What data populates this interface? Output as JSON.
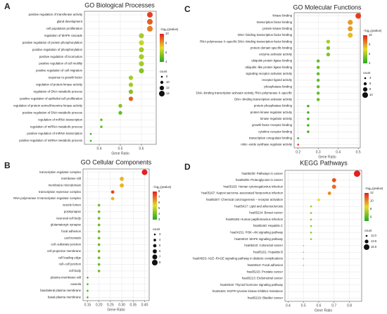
{
  "chart_data": [
    {
      "type": "dotplot",
      "panel": "A",
      "title": "GO Biological Processes",
      "x_label": "Gene Ratio",
      "categories": [
        "positive regulation of transferase activity",
        "gland development",
        "cell population proliferation",
        "regulation of MAPK cascade",
        "positive regulation of protein phosphorylation",
        "positive regulation of phosphorylation",
        "positive regulation of locomotion",
        "positive regulation of cell motility",
        "positive regulation of cell migration",
        "response to growth factor",
        "regulation of protein kinase activity",
        "regulation of DNA metabolic process",
        "positive regulation of epithelial cell proliferation",
        "regulation of protein serine/threonine kinase activity",
        "positive regulation of DNA metabolic process",
        "regulation of miRNA transcription",
        "regulation of miRNA metabolic process",
        "positive regulation of miRNA transcription",
        "positive regulation of miRNA metabolic process"
      ],
      "values": [
        0.64,
        0.64,
        0.64,
        0.6,
        0.6,
        0.6,
        0.6,
        0.6,
        0.6,
        0.55,
        0.55,
        0.55,
        0.55,
        0.5,
        0.5,
        0.41,
        0.41,
        0.36,
        0.36
      ],
      "neglog10p": [
        9.5,
        9,
        8.5,
        6,
        6.5,
        6,
        6,
        6,
        5.5,
        6,
        6,
        5.5,
        9,
        5.5,
        5,
        5,
        5,
        4.5,
        4.2
      ],
      "count": [
        14,
        14,
        14,
        13,
        13,
        13,
        13,
        13,
        13,
        12,
        12,
        12,
        12,
        11,
        11,
        9,
        9,
        8,
        8
      ],
      "xlim": [
        0.33,
        0.67
      ],
      "xticks": [
        0.4,
        0.5,
        0.6
      ],
      "grid": true,
      "color_legend_title": "−log₁₀(pvalue)",
      "clim": [
        4,
        10
      ],
      "cticks": [
        4,
        6,
        8,
        10
      ],
      "size_legend_title": "count",
      "size_legend": [
        8,
        10,
        12,
        14
      ]
    },
    {
      "type": "dotplot",
      "panel": "B",
      "title": "GO Cellular Components",
      "x_label": "Gene Ratio",
      "categories": [
        "transcription regulator complex",
        "membrane raft",
        "membrane microdomain",
        "transcription repressor complex",
        "RNA polymerase II transcription regulator complex",
        "vesicle lumen",
        "postsynapse",
        "neuronal cell body",
        "glutamatergic synapse",
        "focal adhesion",
        "euchromatin",
        "cell−substrate junction",
        "cell projection membrane",
        "cell leading edge",
        "cell−cell junction",
        "cell body",
        "plasma membrane raft",
        "caveola",
        "basolateral plasma membrane",
        "basal plasma membrane"
      ],
      "values": [
        0.4,
        0.3,
        0.3,
        0.26,
        0.26,
        0.2,
        0.2,
        0.2,
        0.2,
        0.2,
        0.2,
        0.2,
        0.2,
        0.2,
        0.2,
        0.2,
        0.15,
        0.15,
        0.15,
        0.15
      ],
      "neglog10p": [
        8,
        6,
        6,
        7.5,
        6,
        4,
        4,
        4,
        4,
        4,
        4,
        4,
        4,
        4,
        4,
        4,
        3.5,
        3.5,
        3.5,
        3.5
      ],
      "count": [
        8,
        6,
        6,
        5,
        5,
        4,
        4,
        4,
        4,
        4,
        4,
        4,
        4,
        4,
        4,
        4,
        3,
        3,
        3,
        3
      ],
      "xlim": [
        0.13,
        0.42
      ],
      "xticks": [
        0.15,
        {
          "value": 0.2,
          "label": "0.20"
        },
        0.25,
        {
          "value": 0.3,
          "label": "0.30"
        },
        0.35,
        {
          "value": 0.4,
          "label": "0.40"
        }
      ],
      "grid": true,
      "color_legend_title": "−log₁₀(pvalue)",
      "clim": [
        3,
        8
      ],
      "cticks": [
        3,
        4,
        5,
        6,
        7,
        8
      ],
      "size_legend_title": "count",
      "size_legend": [
        3,
        4,
        5,
        6,
        7,
        8
      ]
    },
    {
      "type": "dotplot",
      "panel": "C",
      "title": "GO Molecular Functions",
      "x_label": "Gene Ratio",
      "categories": [
        "kinase binding",
        "transcription factor binding",
        "protein kinase binding",
        "DNA−binding transcription factor binding",
        "RNA polymerase II−specific DNA−binding transcription factor binding",
        "protein domain specific binding",
        "enzyme activator activity",
        "ubiquitin protein ligase binding",
        "ubiquitin−like protein ligase binding",
        "signaling receptor activator activity",
        "receptor ligand activity",
        "phosphatase binding",
        "DNA−binding transcription activator activity, RNA polymerase II−specific",
        "DNA−binding transcription activator activity",
        "protein phosphatase binding",
        "protein kinase regulator activity",
        "kinase regulator activity",
        "growth factor receptor binding",
        "cytokine receptor binding",
        "transcription coregulator binding",
        "nitric−oxide synthase regulator activity"
      ],
      "values": [
        0.5,
        0.46,
        0.46,
        0.46,
        0.35,
        0.35,
        0.35,
        0.3,
        0.3,
        0.3,
        0.3,
        0.3,
        0.3,
        0.3,
        0.25,
        0.25,
        0.25,
        0.25,
        0.25,
        0.2,
        0.2
      ],
      "neglog10p": [
        9.5,
        8,
        8,
        7.5,
        6,
        5.5,
        5.5,
        5,
        5,
        5,
        5,
        5,
        5,
        5,
        4.5,
        4.5,
        4.5,
        4.5,
        4.5,
        4.2,
        9.5
      ],
      "count": [
        10,
        9,
        9,
        9,
        7,
        7,
        7,
        6,
        6,
        6,
        6,
        6,
        6,
        6,
        5,
        5,
        5,
        5,
        5,
        4,
        4
      ],
      "xlim": [
        0.18,
        0.51
      ],
      "xticks": [
        0.2,
        0.3,
        0.4,
        0.5
      ],
      "grid": true,
      "color_legend_title": "−log₁₀(pvalue)",
      "clim": [
        4,
        10
      ],
      "cticks": [
        4,
        6,
        8,
        10
      ],
      "size_legend_title": "count",
      "size_legend": [
        4,
        6,
        8,
        10
      ]
    },
    {
      "type": "dotplot",
      "panel": "D",
      "title": "KEGG Pathways",
      "x_label": "Gene Ratio",
      "categories": [
        "hsa05200: Pathways in cancer",
        "hsa05205: Proteoglycans in cancer",
        "hsa05163: Human cytomegalovirus infection",
        "hsa05167: Kaposi sarcoma−associated herpesvirus infection",
        "hsa05207: Chemical carcinogenesis − receptor activation",
        "hsa05417: Lipid and atherosclerosis",
        "hsa05224: Breast cancer",
        "hsa05165: Human papillomavirus infection",
        "hsa05160: Hepatitis C",
        "hsa04151: PI3K−Akt signaling pathway",
        "hsa04010: MAPK signaling pathway",
        "hsa05210: Colorectal cancer",
        "hsa05161: Hepatitis B",
        "hsa04933: AGE−RAGE signaling pathway in diabetic complications",
        "hsa04510: Focal adhesion",
        "hsa05215: Prostate cancer",
        "hsa05213: Endometrial cancer",
        "hsa04919: Thyroid hormone signaling pathway",
        "hsa01521: EGFR tyrosine kinase inhibitor resistance",
        "hsa05219: Bladder cancer"
      ],
      "values": [
        0.85,
        0.7,
        0.7,
        0.67,
        0.6,
        0.55,
        0.55,
        0.55,
        0.55,
        0.55,
        0.55,
        0.5,
        0.5,
        0.5,
        0.5,
        0.45,
        0.45,
        0.45,
        0.45,
        0.45
      ],
      "neglog10p": [
        12,
        11,
        10.5,
        10,
        8.5,
        7,
        7,
        7,
        7,
        7,
        7,
        6.5,
        6.5,
        6.5,
        6.5,
        6,
        6,
        6,
        6,
        6
      ],
      "count": [
        17,
        14,
        14,
        13,
        12,
        11,
        11,
        11,
        11,
        11,
        11,
        10,
        10,
        10,
        10,
        9,
        9,
        9,
        9,
        9
      ],
      "xlim": [
        0.38,
        0.88
      ],
      "xticks": [
        0.4,
        0.5,
        0.6,
        0.7,
        0.8
      ],
      "grid": true,
      "color_legend_title": "−log₁₀(pvalue)",
      "clim": [
        5,
        12
      ],
      "cticks": [
        6,
        8,
        10,
        12
      ],
      "size_legend_title": "count",
      "size_legend": [
        {
          "value": 11,
          "label": "11.0"
        },
        {
          "value": 13.5,
          "label": "13.5"
        },
        {
          "value": 16,
          "label": "16.0"
        }
      ]
    }
  ]
}
